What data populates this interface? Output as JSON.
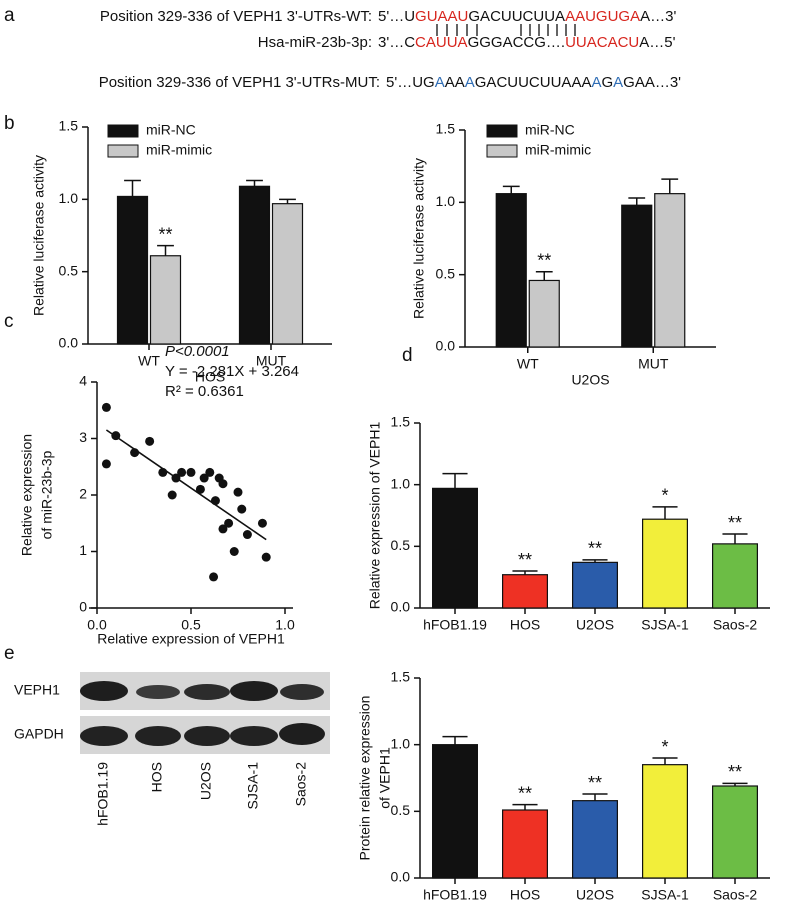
{
  "panel_labels": [
    "a",
    "b",
    "c",
    "d",
    "e"
  ],
  "sequences": [
    {
      "label": "Position 329-336 of VEPH1 3'-UTRs-WT:",
      "runs": [
        {
          "text": "5'…U",
          "color": "#111111"
        },
        {
          "text": "GUAAU",
          "color": "#d7261e"
        },
        {
          "text": "GACUUCUUA",
          "color": "#111111"
        },
        {
          "text": "AAUGUGA",
          "color": "#d7261e"
        },
        {
          "text": "A…3'",
          "color": "#111111"
        }
      ]
    },
    {
      "label": "Hsa-miR-23b-3p:",
      "runs": [
        {
          "text": "3'…C",
          "color": "#111111"
        },
        {
          "text": "CAUUA",
          "color": "#d7261e"
        },
        {
          "text": "GGGACCG….",
          "color": "#111111"
        },
        {
          "text": "UUACACU",
          "color": "#d7261e"
        },
        {
          "text": "A…5'",
          "color": "#111111"
        }
      ]
    },
    {
      "label": "Position 329-336 of VEPH1 3'-UTRs-MUT:",
      "runs": [
        {
          "text": "5'…UG",
          "color": "#111111"
        },
        {
          "text": "A",
          "color": "#2f6db5"
        },
        {
          "text": "AA",
          "color": "#111111"
        },
        {
          "text": "A",
          "color": "#2f6db5"
        },
        {
          "text": "GACUUCUUAAA",
          "color": "#111111"
        },
        {
          "text": "A",
          "color": "#2f6db5"
        },
        {
          "text": "G",
          "color": "#111111"
        },
        {
          "text": "A",
          "color": "#2f6db5"
        },
        {
          "text": "GAA…3'",
          "color": "#111111"
        }
      ]
    }
  ],
  "blot": {
    "rows": [
      "VEPH1",
      "GAPDH"
    ],
    "lanes": [
      "hFOB1.19",
      "HOS",
      "U2OS",
      "SJSA-1",
      "Saos-2"
    ]
  },
  "chart_data": [
    {
      "type": "bar",
      "ylabel": "Relative luciferase activity",
      "xlabel": "HOS",
      "categories": [
        "WT",
        "MUT"
      ],
      "series": [
        {
          "name": "miR-NC",
          "color": "#111111",
          "values": [
            1.02,
            1.09
          ],
          "errors": [
            0.11,
            0.04
          ],
          "labels": [
            null,
            null
          ]
        },
        {
          "name": "miR-mimic",
          "color": "#c8c8c8",
          "values": [
            0.61,
            0.97
          ],
          "errors": [
            0.07,
            0.03
          ],
          "labels": [
            "**",
            null
          ]
        }
      ],
      "ylim": [
        0,
        1.5
      ],
      "yticks": [
        {
          "value": 0,
          "label": "0.0"
        },
        0.5,
        {
          "value": 1,
          "label": "1.0"
        },
        1.5
      ]
    },
    {
      "type": "bar",
      "ylabel": "Relative luciferase activity",
      "xlabel": "U2OS",
      "categories": [
        "WT",
        "MUT"
      ],
      "series": [
        {
          "name": "miR-NC",
          "color": "#111111",
          "values": [
            1.06,
            0.98
          ],
          "errors": [
            0.05,
            0.05
          ],
          "labels": [
            null,
            null
          ]
        },
        {
          "name": "miR-mimic",
          "color": "#c8c8c8",
          "values": [
            0.46,
            1.06
          ],
          "errors": [
            0.06,
            0.1
          ],
          "labels": [
            "**",
            null
          ]
        }
      ],
      "ylim": [
        0,
        1.5
      ],
      "yticks": [
        {
          "value": 0,
          "label": "0.0"
        },
        0.5,
        {
          "value": 1,
          "label": "1.0"
        },
        1.5
      ]
    },
    {
      "type": "scatter",
      "ylabel": [
        "Relative expression",
        "of miR-23b-3p"
      ],
      "xlabel": "Relative expression of VEPH1",
      "annotations": [
        "P<0.0001",
        "Y = -2.281X + 3.264",
        "R² = 0.6361"
      ],
      "x": [
        0.05,
        0.05,
        0.1,
        0.2,
        0.28,
        0.35,
        0.4,
        0.42,
        0.45,
        0.5,
        0.55,
        0.57,
        0.6,
        0.63,
        0.65,
        0.67,
        0.7,
        0.73,
        0.75,
        0.77,
        0.8,
        0.62,
        0.88,
        0.9,
        0.67
      ],
      "y": [
        3.55,
        2.55,
        3.05,
        2.75,
        2.95,
        2.4,
        2.0,
        2.3,
        2.4,
        2.4,
        2.1,
        2.3,
        2.4,
        1.9,
        2.3,
        1.4,
        1.5,
        1.0,
        2.05,
        1.75,
        1.3,
        0.55,
        1.5,
        0.9,
        2.2
      ],
      "color": "#111111",
      "fit_line": {
        "x": [
          0.05,
          0.9
        ],
        "y": [
          3.15,
          1.21
        ]
      },
      "xlim": [
        0,
        1
      ],
      "xticks": [
        {
          "value": 0,
          "label": "0.0"
        },
        0.5,
        {
          "value": 1,
          "label": "1.0"
        }
      ],
      "ylim": [
        0,
        4
      ],
      "yticks": [
        0,
        1,
        2,
        3,
        4
      ]
    },
    {
      "type": "bar",
      "ylabel": "Relative expression of VEPH1",
      "categories": [
        "hFOB1.19",
        "HOS",
        "U2OS",
        "SJSA-1",
        "Saos-2"
      ],
      "values": [
        0.97,
        0.27,
        0.37,
        0.72,
        0.52
      ],
      "errors": [
        0.12,
        0.03,
        0.02,
        0.1,
        0.08
      ],
      "labels": [
        null,
        "**",
        "**",
        "*",
        "**"
      ],
      "colors": [
        "#111111",
        "#ee3124",
        "#2a5caa",
        "#f2ee3a",
        "#6cbd45"
      ],
      "ylim": [
        0,
        1.5
      ],
      "yticks": [
        {
          "value": 0,
          "label": "0.0"
        },
        0.5,
        {
          "value": 1,
          "label": "1.0"
        },
        1.5
      ]
    },
    {
      "type": "bar",
      "ylabel": [
        "Protein relative expression",
        "of VEPH1"
      ],
      "categories": [
        "hFOB1.19",
        "HOS",
        "U2OS",
        "SJSA-1",
        "Saos-2"
      ],
      "values": [
        1.0,
        0.51,
        0.58,
        0.85,
        0.69
      ],
      "errors": [
        0.06,
        0.04,
        0.05,
        0.05,
        0.02
      ],
      "labels": [
        null,
        "**",
        "**",
        "*",
        "**"
      ],
      "colors": [
        "#111111",
        "#ee3124",
        "#2a5caa",
        "#f2ee3a",
        "#6cbd45"
      ],
      "ylim": [
        0,
        1.5
      ],
      "yticks": [
        {
          "value": 0,
          "label": "0.0"
        },
        0.5,
        {
          "value": 1,
          "label": "1.0"
        },
        1.5
      ]
    }
  ]
}
